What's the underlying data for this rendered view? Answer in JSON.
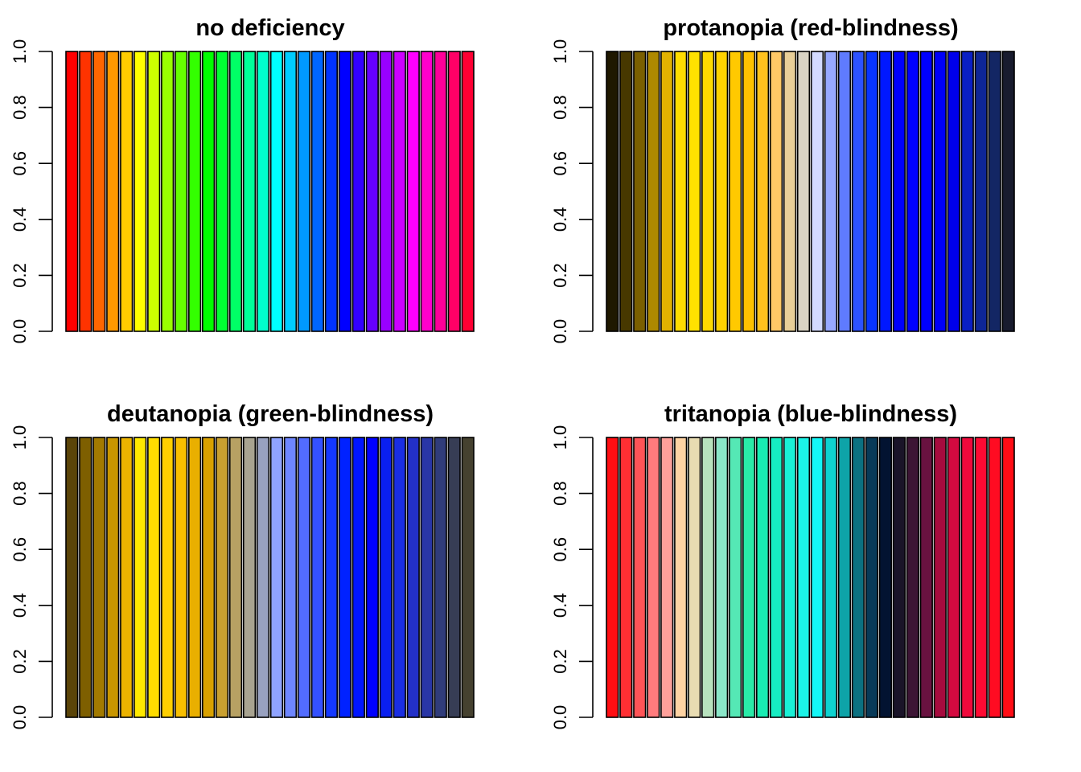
{
  "chart_data": [
    {
      "type": "bar",
      "title": "no deficiency",
      "xlabel": "",
      "ylabel": "",
      "ylim": [
        0,
        1
      ],
      "yticks": [
        "0.0",
        "0.2",
        "0.4",
        "0.6",
        "0.8",
        "1.0"
      ],
      "grid": false,
      "values": [
        1,
        1,
        1,
        1,
        1,
        1,
        1,
        1,
        1,
        1,
        1,
        1,
        1,
        1,
        1,
        1,
        1,
        1,
        1,
        1,
        1,
        1,
        1,
        1,
        1,
        1,
        1,
        1,
        1,
        1
      ],
      "colors": [
        "#FF0000",
        "#FF3300",
        "#FF6600",
        "#FF9900",
        "#FFCC00",
        "#FFFF00",
        "#CCFF00",
        "#99FF00",
        "#66FF00",
        "#33FF00",
        "#00FF00",
        "#00FF33",
        "#00FF66",
        "#00FF99",
        "#00FFCC",
        "#00FFFF",
        "#00CCFF",
        "#0099FF",
        "#0066FF",
        "#0033FF",
        "#0000FF",
        "#3300FF",
        "#6600FF",
        "#9900FF",
        "#CC00FF",
        "#FF00FF",
        "#FF00CC",
        "#FF0099",
        "#FF0066",
        "#FF0033"
      ]
    },
    {
      "type": "bar",
      "title": "protanopia (red-blindness)",
      "xlabel": "",
      "ylabel": "",
      "ylim": [
        0,
        1
      ],
      "yticks": [
        "0.0",
        "0.2",
        "0.4",
        "0.6",
        "0.8",
        "1.0"
      ],
      "grid": false,
      "values": [
        1,
        1,
        1,
        1,
        1,
        1,
        1,
        1,
        1,
        1,
        1,
        1,
        1,
        1,
        1,
        1,
        1,
        1,
        1,
        1,
        1,
        1,
        1,
        1,
        1,
        1,
        1,
        1,
        1,
        1
      ],
      "colors": [
        "#1F1800",
        "#473800",
        "#7A5F00",
        "#AE8900",
        "#E2B200",
        "#FFDC00",
        "#FFE100",
        "#FFDA00",
        "#FFD200",
        "#FFC900",
        "#FFC100",
        "#FFC11E",
        "#FFC866",
        "#E8CF98",
        "#D9D3C4",
        "#D3DAFF",
        "#98A9FF",
        "#5F7BFF",
        "#2D52FF",
        "#0734FF",
        "#0018FF",
        "#0000FF",
        "#0000FF",
        "#0000FF",
        "#0000F8",
        "#0000EA",
        "#0A1FC4",
        "#0E2696",
        "#132664",
        "#181B2E"
      ]
    },
    {
      "type": "bar",
      "title": "deutanopia (green-blindness)",
      "xlabel": "",
      "ylabel": "",
      "ylim": [
        0,
        1
      ],
      "yticks": [
        "0.0",
        "0.2",
        "0.4",
        "0.6",
        "0.8",
        "1.0"
      ],
      "grid": false,
      "values": [
        1,
        1,
        1,
        1,
        1,
        1,
        1,
        1,
        1,
        1,
        1,
        1,
        1,
        1,
        1,
        1,
        1,
        1,
        1,
        1,
        1,
        1,
        1,
        1,
        1,
        1,
        1,
        1,
        1,
        1
      ],
      "colors": [
        "#5A4408",
        "#7E5F00",
        "#A27A00",
        "#C89600",
        "#ECB300",
        "#FFE900",
        "#FFDD00",
        "#FFCF00",
        "#F8BF00",
        "#E9AF00",
        "#D9A100",
        "#C9A030",
        "#B7A163",
        "#A8A390",
        "#98A1C0",
        "#8FA3FF",
        "#6E86FF",
        "#526CFF",
        "#3451FF",
        "#1438FF",
        "#0022FF",
        "#0015FF",
        "#0000FF",
        "#0A1FF0",
        "#1A2EE2",
        "#2330C8",
        "#2936A6",
        "#303C7A",
        "#373D55",
        "#45412F"
      ]
    },
    {
      "type": "bar",
      "title": "tritanopia (blue-blindness)",
      "xlabel": "",
      "ylabel": "",
      "ylim": [
        0,
        1
      ],
      "yticks": [
        "0.0",
        "0.2",
        "0.4",
        "0.6",
        "0.8",
        "1.0"
      ],
      "grid": false,
      "values": [
        1,
        1,
        1,
        1,
        1,
        1,
        1,
        1,
        1,
        1,
        1,
        1,
        1,
        1,
        1,
        1,
        1,
        1,
        1,
        1,
        1,
        1,
        1,
        1,
        1,
        1,
        1,
        1,
        1,
        1
      ],
      "colors": [
        "#FF0E12",
        "#FF2F33",
        "#FF5457",
        "#FF7B7D",
        "#FFA09A",
        "#FFD3A3",
        "#E8DCB2",
        "#B8E2BE",
        "#8AE6C8",
        "#55E8B5",
        "#2AEBA8",
        "#18ECB2",
        "#16EDC2",
        "#1AF0D6",
        "#1BF3E7",
        "#13F6F6",
        "#0ED3D0",
        "#0EA3A8",
        "#0B7181",
        "#083A58",
        "#021331",
        "#1A1428",
        "#3D1535",
        "#691240",
        "#A60B3E",
        "#D40A40",
        "#F00A3C",
        "#FF0A33",
        "#FF0C22",
        "#FF0D15"
      ]
    }
  ]
}
